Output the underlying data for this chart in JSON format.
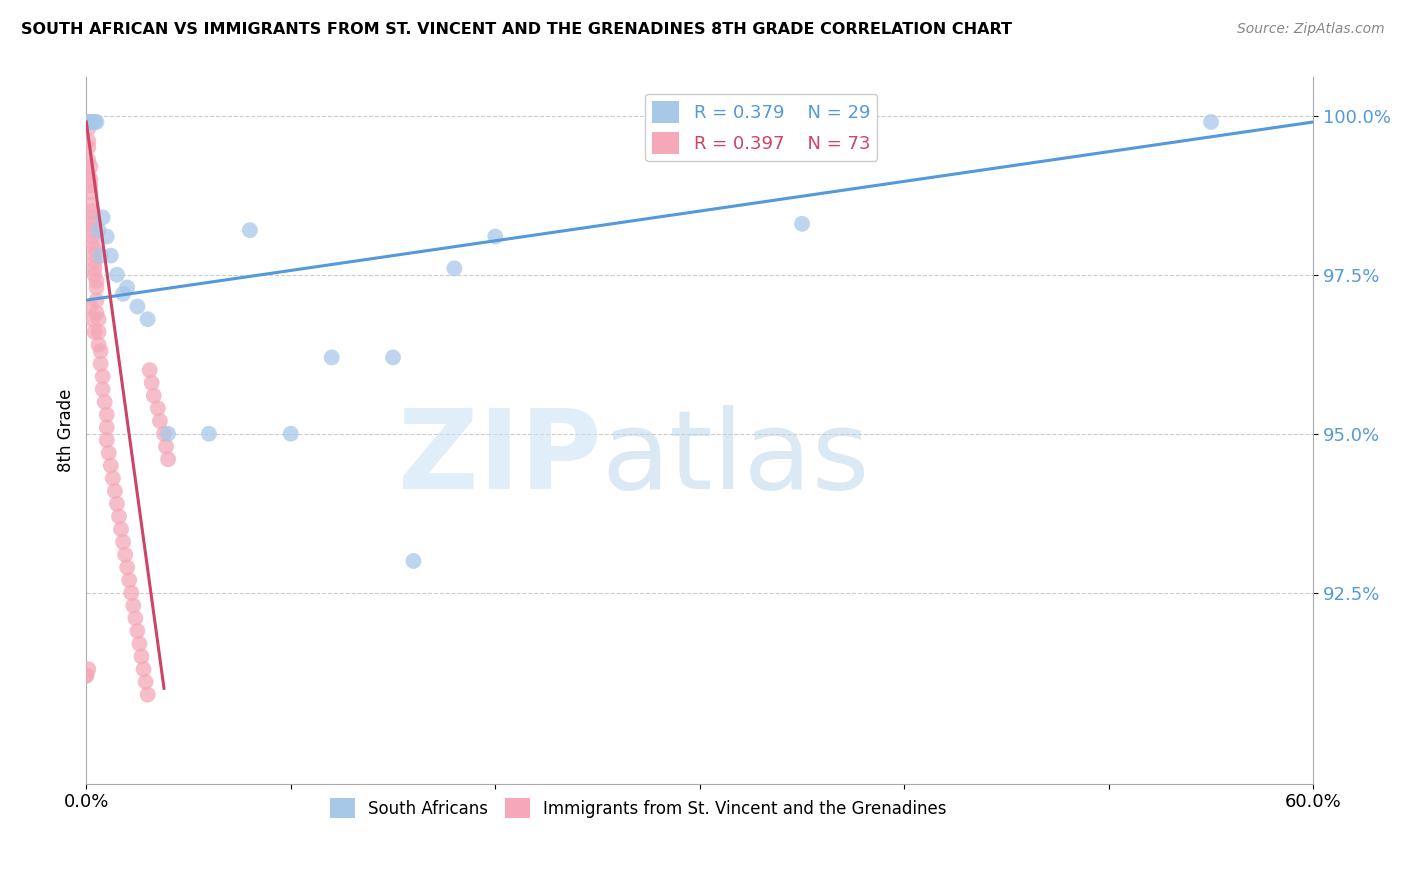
{
  "title": "SOUTH AFRICAN VS IMMIGRANTS FROM ST. VINCENT AND THE GRENADINES 8TH GRADE CORRELATION CHART",
  "source": "Source: ZipAtlas.com",
  "ylabel": "8th Grade",
  "xlim": [
    0.0,
    0.6
  ],
  "ylim": [
    0.895,
    1.006
  ],
  "yticks": [
    0.925,
    0.95,
    0.975,
    1.0
  ],
  "yticklabels": [
    "92.5%",
    "95.0%",
    "97.5%",
    "100.0%"
  ],
  "xtick_positions": [
    0.0,
    0.1,
    0.2,
    0.3,
    0.4,
    0.5,
    0.6
  ],
  "xtick_labels": [
    "0.0%",
    "",
    "",
    "",
    "",
    "",
    "60.0%"
  ],
  "legend_r_blue": "R = 0.379",
  "legend_n_blue": "N = 29",
  "legend_r_pink": "R = 0.397",
  "legend_n_pink": "N = 73",
  "blue_scatter_color": "#a8c8e8",
  "pink_scatter_color": "#f4a8b8",
  "blue_line_color": "#5599dd",
  "pink_line_color": "#cc4466",
  "grid_color": "#cccccc",
  "tick_color": "#5599dd",
  "blue_points_x": [
    0.001,
    0.002,
    0.002,
    0.003,
    0.003,
    0.004,
    0.004,
    0.005,
    0.006,
    0.007,
    0.008,
    0.01,
    0.012,
    0.015,
    0.018,
    0.02,
    0.025,
    0.03,
    0.04,
    0.06,
    0.08,
    0.1,
    0.12,
    0.15,
    0.16,
    0.18,
    0.2,
    0.35,
    0.55
  ],
  "blue_points_y": [
    0.999,
    0.999,
    0.999,
    0.999,
    0.999,
    0.999,
    0.999,
    0.999,
    0.982,
    0.978,
    0.984,
    0.981,
    0.978,
    0.975,
    0.972,
    0.973,
    0.97,
    0.968,
    0.95,
    0.95,
    0.982,
    0.95,
    0.962,
    0.962,
    0.93,
    0.976,
    0.981,
    0.983,
    0.999
  ],
  "pink_points_x": [
    0.0,
    0.0,
    0.0,
    0.001,
    0.001,
    0.001,
    0.001,
    0.001,
    0.001,
    0.002,
    0.002,
    0.002,
    0.002,
    0.002,
    0.003,
    0.003,
    0.003,
    0.003,
    0.003,
    0.003,
    0.004,
    0.004,
    0.004,
    0.004,
    0.004,
    0.005,
    0.005,
    0.005,
    0.005,
    0.006,
    0.006,
    0.006,
    0.007,
    0.007,
    0.008,
    0.008,
    0.009,
    0.01,
    0.01,
    0.01,
    0.011,
    0.012,
    0.013,
    0.014,
    0.015,
    0.016,
    0.017,
    0.018,
    0.019,
    0.02,
    0.021,
    0.022,
    0.023,
    0.024,
    0.025,
    0.026,
    0.027,
    0.028,
    0.029,
    0.03,
    0.031,
    0.032,
    0.033,
    0.035,
    0.036,
    0.038,
    0.039,
    0.04,
    0.0,
    0.001,
    0.002,
    0.003,
    0.004
  ],
  "pink_points_y": [
    0.999,
    0.999,
    0.912,
    0.999,
    0.998,
    0.996,
    0.995,
    0.993,
    0.991,
    0.992,
    0.99,
    0.989,
    0.988,
    0.986,
    0.985,
    0.984,
    0.983,
    0.982,
    0.981,
    0.98,
    0.979,
    0.978,
    0.977,
    0.976,
    0.975,
    0.974,
    0.973,
    0.971,
    0.969,
    0.968,
    0.966,
    0.964,
    0.963,
    0.961,
    0.959,
    0.957,
    0.955,
    0.953,
    0.951,
    0.949,
    0.947,
    0.945,
    0.943,
    0.941,
    0.939,
    0.937,
    0.935,
    0.933,
    0.931,
    0.929,
    0.927,
    0.925,
    0.923,
    0.921,
    0.919,
    0.917,
    0.915,
    0.913,
    0.911,
    0.909,
    0.96,
    0.958,
    0.956,
    0.954,
    0.952,
    0.95,
    0.948,
    0.946,
    0.912,
    0.913,
    0.97,
    0.968,
    0.966
  ],
  "blue_trend_x": [
    0.0,
    0.6
  ],
  "blue_trend_y": [
    0.971,
    0.999
  ],
  "pink_trend_x": [
    0.0,
    0.038
  ],
  "pink_trend_y": [
    0.999,
    0.91
  ]
}
